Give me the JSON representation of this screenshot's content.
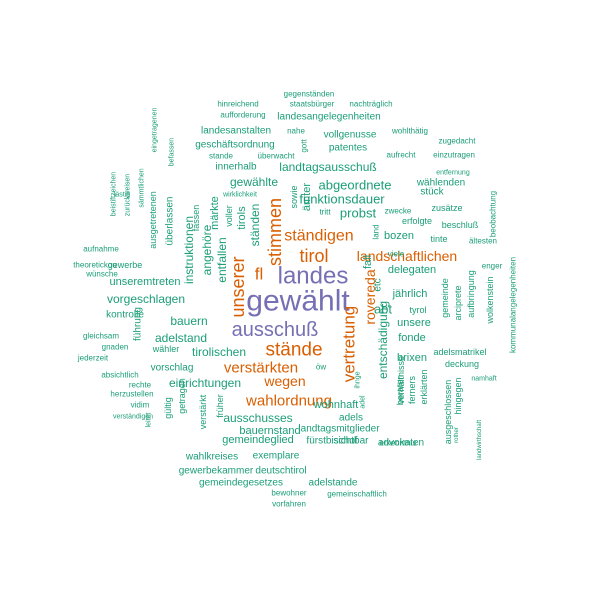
{
  "colors": {
    "purple": "#7570b3",
    "orange": "#d95f02",
    "teal": "#1b9e77"
  },
  "words": [
    {
      "text": "gewählt",
      "color": "purple"
    },
    {
      "text": "landes",
      "color": "purple"
    },
    {
      "text": "ausschuß",
      "color": "purple"
    },
    {
      "text": "stände",
      "color": "orange"
    },
    {
      "text": "stimmen",
      "color": "orange"
    },
    {
      "text": "unserer",
      "color": "orange"
    },
    {
      "text": "fl",
      "color": "orange"
    },
    {
      "text": "tirol",
      "color": "orange"
    },
    {
      "text": "ständigen",
      "color": "orange"
    },
    {
      "text": "verstärkten",
      "color": "orange"
    },
    {
      "text": "wahlordnung",
      "color": "orange"
    },
    {
      "text": "wegen",
      "color": "orange"
    },
    {
      "text": "vertretung",
      "color": "orange"
    },
    {
      "text": "landschaftlichen",
      "color": "orange"
    },
    {
      "text": "rovereda",
      "color": "orange"
    },
    {
      "text": "abt",
      "color": "teal"
    },
    {
      "text": "entschädigung",
      "color": "teal"
    },
    {
      "text": "probst",
      "color": "teal"
    },
    {
      "text": "funktionsdauer",
      "color": "teal"
    },
    {
      "text": "abgeordnete",
      "color": "teal"
    },
    {
      "text": "landtagsausschuß",
      "color": "teal"
    },
    {
      "text": "gewählte",
      "color": "teal"
    },
    {
      "text": "ständen",
      "color": "teal"
    },
    {
      "text": "tirols",
      "color": "teal"
    },
    {
      "text": "märkte",
      "color": "teal"
    },
    {
      "text": "angehöre",
      "color": "teal"
    },
    {
      "text": "entfallen",
      "color": "teal"
    },
    {
      "text": "instruktionen",
      "color": "teal"
    },
    {
      "text": "bauern",
      "color": "teal"
    },
    {
      "text": "adelstand",
      "color": "teal"
    },
    {
      "text": "tirolischen",
      "color": "teal"
    },
    {
      "text": "vorgeschlagen",
      "color": "teal"
    },
    {
      "text": "unseremtreten",
      "color": "teal"
    },
    {
      "text": "ausschusses",
      "color": "teal"
    },
    {
      "text": "bauernstand",
      "color": "teal"
    },
    {
      "text": "gemeindeglied",
      "color": "teal"
    },
    {
      "text": "einrichtungen",
      "color": "teal"
    },
    {
      "text": "wohnhaft",
      "color": "teal"
    },
    {
      "text": "delegaten",
      "color": "teal"
    },
    {
      "text": "bozen",
      "color": "teal"
    },
    {
      "text": "jährlich",
      "color": "teal"
    },
    {
      "text": "unsere",
      "color": "teal"
    },
    {
      "text": "fonde",
      "color": "teal"
    },
    {
      "text": "brixen",
      "color": "teal"
    },
    {
      "text": "wählenden",
      "color": "teal"
    },
    {
      "text": "etc",
      "color": "teal"
    },
    {
      "text": "fall",
      "color": "teal"
    },
    {
      "text": "ämter",
      "color": "teal"
    },
    {
      "text": "sowie",
      "color": "teal"
    },
    {
      "text": "innerhalb",
      "color": "teal"
    },
    {
      "text": "vollgenusse",
      "color": "teal"
    },
    {
      "text": "patentes",
      "color": "teal"
    },
    {
      "text": "landesanstalten",
      "color": "teal"
    },
    {
      "text": "geschäftsordnung",
      "color": "teal"
    },
    {
      "text": "landesangelegenheiten",
      "color": "teal"
    },
    {
      "text": "kontrolle",
      "color": "teal"
    },
    {
      "text": "vorschlag",
      "color": "teal"
    },
    {
      "text": "fürstbischof",
      "color": "teal"
    },
    {
      "text": "advokaten",
      "color": "teal"
    },
    {
      "text": "landtagsmitglieder",
      "color": "teal"
    },
    {
      "text": "wahlkreises",
      "color": "teal"
    },
    {
      "text": "exemplare",
      "color": "teal"
    },
    {
      "text": "gewerbekammer",
      "color": "teal"
    },
    {
      "text": "deutschtirol",
      "color": "teal"
    },
    {
      "text": "sichtbar",
      "color": "teal"
    },
    {
      "text": "gemeindegesetzes",
      "color": "teal"
    },
    {
      "text": "adelstande",
      "color": "teal"
    },
    {
      "text": "adels",
      "color": "teal"
    },
    {
      "text": "gewerbe",
      "color": "teal"
    },
    {
      "text": "überlassen",
      "color": "teal"
    },
    {
      "text": "ausgetretenen",
      "color": "teal"
    },
    {
      "text": "fassen",
      "color": "teal"
    },
    {
      "text": "voller",
      "color": "teal"
    },
    {
      "text": "führung",
      "color": "teal"
    },
    {
      "text": "wähler",
      "color": "teal"
    },
    {
      "text": "früher",
      "color": "teal"
    },
    {
      "text": "gültig",
      "color": "teal"
    },
    {
      "text": "getragen",
      "color": "teal"
    },
    {
      "text": "verstärkt",
      "color": "teal"
    },
    {
      "text": "stück",
      "color": "teal"
    },
    {
      "text": "erfolgte",
      "color": "teal"
    },
    {
      "text": "zusätze",
      "color": "teal"
    },
    {
      "text": "beschluß",
      "color": "teal"
    },
    {
      "text": "tinte",
      "color": "teal"
    },
    {
      "text": "ältesten",
      "color": "teal"
    },
    {
      "text": "aufbringung",
      "color": "teal"
    },
    {
      "text": "arciprete",
      "color": "teal"
    },
    {
      "text": "gemeinde",
      "color": "teal"
    },
    {
      "text": "adelsmatrikel",
      "color": "teal"
    },
    {
      "text": "deckung",
      "color": "teal"
    },
    {
      "text": "tyrol",
      "color": "teal"
    },
    {
      "text": "beraten",
      "color": "teal"
    },
    {
      "text": "ferners",
      "color": "teal"
    },
    {
      "text": "erklärten",
      "color": "teal"
    },
    {
      "text": "verhältnisse",
      "color": "teal"
    },
    {
      "text": "ausgeschlossen",
      "color": "teal"
    },
    {
      "text": "hingegen",
      "color": "teal"
    },
    {
      "text": "wolkenstein",
      "color": "teal"
    },
    {
      "text": "kommunalangelegenheiten",
      "color": "teal"
    },
    {
      "text": "beobachtung",
      "color": "teal"
    },
    {
      "text": "enger",
      "color": "teal"
    },
    {
      "text": "viele",
      "color": "teal"
    },
    {
      "text": "zwecke",
      "color": "teal"
    },
    {
      "text": "aufrecht",
      "color": "teal"
    },
    {
      "text": "einzutragen",
      "color": "teal"
    },
    {
      "text": "zugedacht",
      "color": "teal"
    },
    {
      "text": "entfernung",
      "color": "teal"
    },
    {
      "text": "wohlthätig",
      "color": "teal"
    },
    {
      "text": "gegenständen",
      "color": "teal"
    },
    {
      "text": "staatsbürger",
      "color": "teal"
    },
    {
      "text": "nachträglich",
      "color": "teal"
    },
    {
      "text": "hinreichend",
      "color": "teal"
    },
    {
      "text": "aufforderung",
      "color": "teal"
    },
    {
      "text": "nahe",
      "color": "teal"
    },
    {
      "text": "stande",
      "color": "teal"
    },
    {
      "text": "überwacht",
      "color": "teal"
    },
    {
      "text": "gott",
      "color": "teal"
    },
    {
      "text": "wirklichkeit",
      "color": "teal"
    },
    {
      "text": "tritt",
      "color": "teal"
    },
    {
      "text": "land",
      "color": "teal"
    },
    {
      "text": "befassen",
      "color": "teal"
    },
    {
      "text": "eingetragenen",
      "color": "teal"
    },
    {
      "text": "sämmtlichen",
      "color": "teal"
    },
    {
      "text": "zurückweisen",
      "color": "teal"
    },
    {
      "text": "beistiftzeichen",
      "color": "teal"
    },
    {
      "text": "aufnahme",
      "color": "teal"
    },
    {
      "text": "lästig",
      "color": "teal"
    },
    {
      "text": "theoretickou",
      "color": "teal"
    },
    {
      "text": "wünsche",
      "color": "teal"
    },
    {
      "text": "gleichsam",
      "color": "teal"
    },
    {
      "text": "gnaden",
      "color": "teal"
    },
    {
      "text": "jederzeit",
      "color": "teal"
    },
    {
      "text": "absichtlich",
      "color": "teal"
    },
    {
      "text": "rechte",
      "color": "teal"
    },
    {
      "text": "herzustellen",
      "color": "teal"
    },
    {
      "text": "vidim",
      "color": "teal"
    },
    {
      "text": "leitet",
      "color": "teal"
    },
    {
      "text": "verständigen",
      "color": "teal"
    },
    {
      "text": "öw",
      "color": "teal"
    },
    {
      "text": "ihnge",
      "color": "teal"
    },
    {
      "text": "adel",
      "color": "teal"
    },
    {
      "text": "erkenntnis",
      "color": "teal"
    },
    {
      "text": "bewohner",
      "color": "teal"
    },
    {
      "text": "gemeinschaftlich",
      "color": "teal"
    },
    {
      "text": "vorfahren",
      "color": "teal"
    },
    {
      "text": "rother",
      "color": "teal"
    },
    {
      "text": "landwirthschaft",
      "color": "teal"
    },
    {
      "text": "namhaft",
      "color": "teal"
    }
  ]
}
